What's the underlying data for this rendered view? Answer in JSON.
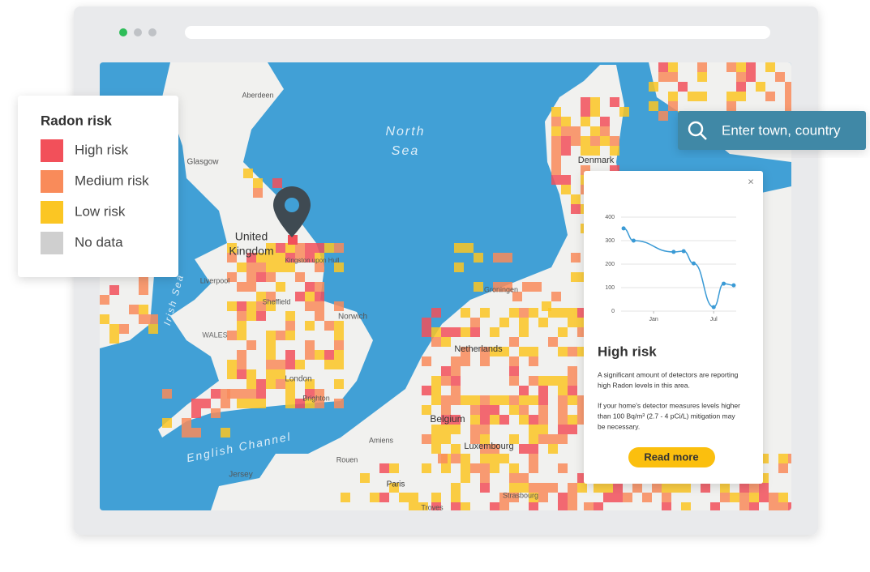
{
  "legend": {
    "title": "Radon risk",
    "items": [
      {
        "label": "High risk",
        "color": "#f2505a"
      },
      {
        "label": "Medium risk",
        "color": "#f98b5a"
      },
      {
        "label": "Low risk",
        "color": "#fbc623"
      },
      {
        "label": "No data",
        "color": "#cfcfcf"
      }
    ]
  },
  "search": {
    "placeholder": "Enter town, country"
  },
  "map_labels": [
    "North",
    "Sea",
    "English Channel",
    "Irish Sea",
    "United",
    "Kingdom",
    "WALES",
    "London",
    "Netherlands",
    "Belgium",
    "Luxembourg",
    "Denmark",
    "Paris",
    "Aberdeen",
    "Glasgow",
    "Sheffield",
    "Norwich",
    "Brighton",
    "Amiens",
    "Rouen",
    "Jersey",
    "Groningen",
    "Strasbourg",
    "Troyes",
    "Liverpool",
    "Kingston upon Hull"
  ],
  "popup": {
    "close": "×",
    "heading": "High risk",
    "text1": [
      "A significant amount of detectors are reporting",
      "high Radon levels in this area."
    ],
    "text2": [
      "If your home's detector measures levels higher",
      "than 100 Bq/m³ (2.7 - 4 pCi/L) mitigation may",
      "be necessary."
    ],
    "button": "Read more"
  },
  "chart_data": {
    "type": "line",
    "x": [
      -3,
      -2,
      2,
      3,
      4,
      6,
      7,
      8
    ],
    "series": [
      {
        "color": "#3a9ad5",
        "values": [
          352,
          300,
          252,
          255,
          203,
          17,
          117,
          110
        ]
      }
    ],
    "xlim": [
      -3.25,
      8.25
    ],
    "xticks": [
      {
        "value": 0,
        "label": "Jan"
      },
      {
        "value": 6,
        "label": "Jul"
      }
    ],
    "ylim": [
      0,
      400
    ],
    "yticks": [
      0,
      100,
      200,
      300,
      400
    ],
    "grid": true
  }
}
